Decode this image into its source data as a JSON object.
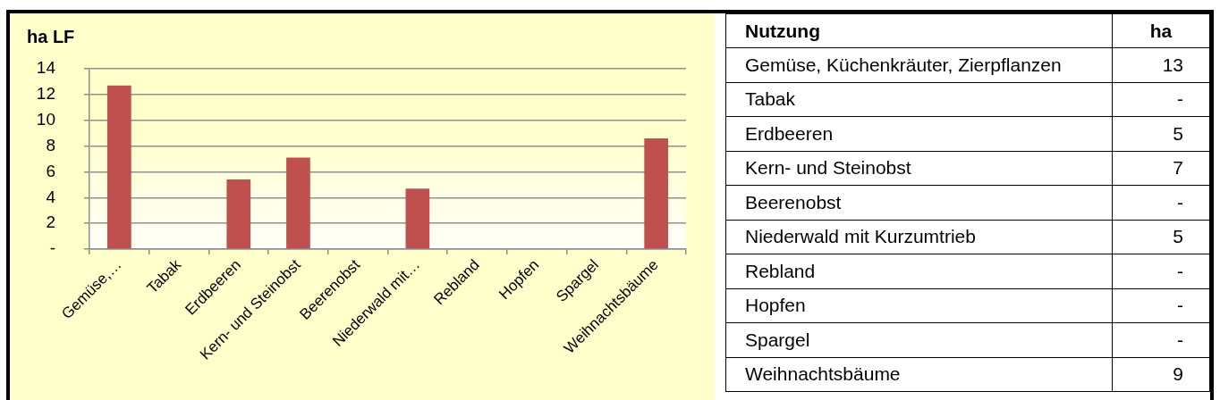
{
  "chart_data": [
    {
      "type": "bar",
      "ylabel": "ha LF",
      "categories": [
        "Gemüse,…",
        "Tabak",
        "Erdbeeren",
        "Kern- und Steinobst",
        "Beerenobst",
        "Niederwald mit…",
        "Rebland",
        "Hopfen",
        "Spargel",
        "Weihnachtsbäume"
      ],
      "values": [
        12.7,
        0,
        5.4,
        7.1,
        0,
        4.7,
        0,
        0,
        0,
        8.6
      ],
      "color": "#c0504d",
      "ylim": [
        0,
        14
      ],
      "yticks": [
        {
          "value": 0,
          "label": "-"
        },
        2,
        4,
        6,
        8,
        10,
        12,
        14
      ],
      "grid": "y"
    },
    {
      "type": "other",
      "categories": [
        "Gemüse, Küchenkräuter, Zierpflanzen",
        "Tabak",
        "Erdbeeren",
        "Kern- und Steinobst",
        "Beerenobst",
        "Niederwald mit Kurzumtrieb",
        "Rebland",
        "Hopfen",
        "Spargel",
        "Weihnachtsbäume"
      ],
      "value_labels": [
        "13",
        "-",
        "5",
        "7",
        "-",
        "5",
        "-",
        "-",
        "-",
        "9"
      ],
      "annotations": [
        "Nutzung",
        "ha"
      ]
    }
  ]
}
